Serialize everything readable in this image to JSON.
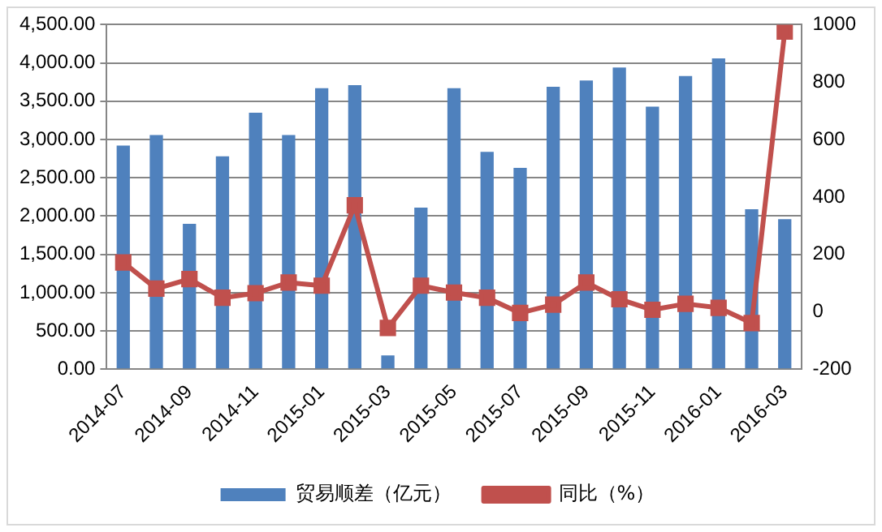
{
  "chart_data": {
    "type": "bar",
    "categories": [
      "2014-07",
      null,
      "2014-09",
      null,
      "2014-11",
      null,
      "2015-01",
      null,
      "2015-03",
      null,
      "2015-05",
      null,
      "2015-07",
      null,
      "2015-09",
      null,
      "2015-11",
      null,
      "2016-01",
      null,
      "2016-03"
    ],
    "series": [
      {
        "name": "贸易顺差（亿元）",
        "color": "#4f81bd",
        "values": [
          2920,
          3060,
          1900,
          2780,
          3350,
          3060,
          3670,
          3710,
          180,
          2110,
          3670,
          2840,
          2630,
          3690,
          3770,
          3940,
          3430,
          3830,
          4060,
          2090,
          1960
        ]
      },
      {
        "name": "同比（%）",
        "type": "line",
        "axis": "y2",
        "color": "#c0504d",
        "marker": "square",
        "values": [
          172,
          81,
          114,
          49,
          65,
          102,
          91,
          371,
          -56,
          91,
          67,
          49,
          -4,
          25,
          102,
          44,
          7,
          28,
          14,
          -39,
          976
        ]
      }
    ],
    "ylim": [
      0,
      4500
    ],
    "yticks": [
      {
        "value": 0,
        "label": "0.00"
      },
      {
        "value": 500,
        "label": "500.00"
      },
      {
        "value": 1000,
        "label": "1,000.00"
      },
      {
        "value": 1500,
        "label": "1,500.00"
      },
      {
        "value": 2000,
        "label": "2,000.00"
      },
      {
        "value": 2500,
        "label": "2,500.00"
      },
      {
        "value": 3000,
        "label": "3,000.00"
      },
      {
        "value": 3500,
        "label": "3,500.00"
      },
      {
        "value": 4000,
        "label": "4,000.00"
      },
      {
        "value": 4500,
        "label": "4,500.00"
      }
    ],
    "y2lim": [
      -200,
      1000
    ],
    "y2ticks": [
      -200,
      0,
      200,
      400,
      600,
      800,
      1000
    ],
    "grid": "y",
    "legend": "bottom"
  }
}
